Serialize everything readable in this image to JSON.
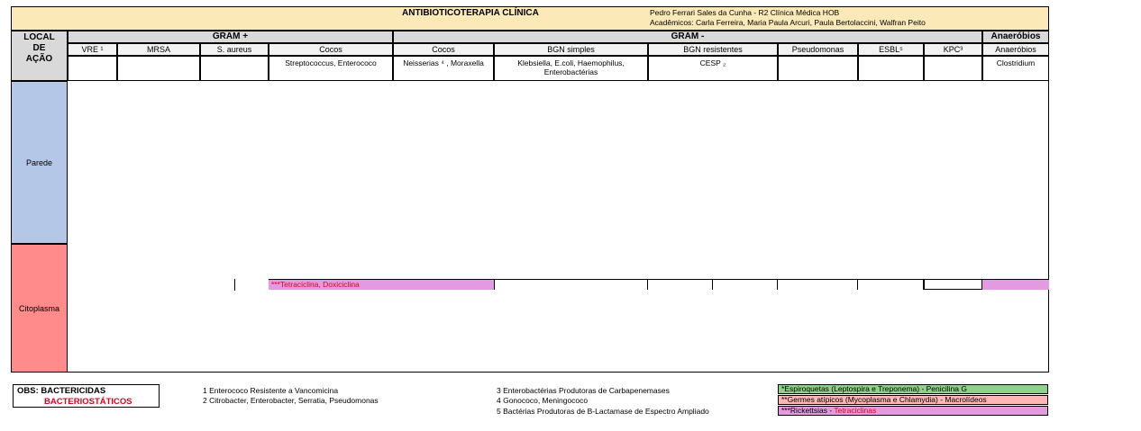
{
  "header": {
    "title": "ANTIBIOTICOTERAPIA CLÍNICA",
    "author": "Pedro Ferrari Sales da Cunha - R2 Clínica Médica HOB",
    "academics": "Acadêmicos: Carla Ferreira, Maria Paula Arcuri, Paula Bertolaccini, Walfran Peito"
  },
  "local": {
    "line1": "LOCAL",
    "line2": "DE",
    "line3": "AÇÃO"
  },
  "groups": {
    "gram_pos": "GRAM +",
    "gram_neg": "GRAM -",
    "anaerobios": "Anaeróbios"
  },
  "columns": [
    {
      "header": "VRE ¹",
      "example": ""
    },
    {
      "header": "MRSA",
      "example": ""
    },
    {
      "header": "S. aureus",
      "example": ""
    },
    {
      "header": "Cocos",
      "example": "Streptococcus, Enterococo"
    },
    {
      "header": "Cocos",
      "example": "Neisserias ⁴ , Moraxella"
    },
    {
      "header": "BGN simples",
      "example": "Klebsiella, E.coli, Haemophilus, Enterobactérias"
    },
    {
      "header": "BGN resistentes",
      "example": "CESP ₂"
    },
    {
      "header": "Pseudomonas",
      "example": ""
    },
    {
      "header": "ESBL⁵",
      "example": ""
    },
    {
      "header": "KPC³",
      "example": ""
    },
    {
      "header": "Anaeróbios",
      "example": "Clostridium"
    }
  ],
  "rows": {
    "parede": "Parede",
    "citoplasma": "Citoplasma"
  },
  "citoplasma": {
    "tetraciclina": "***Tetraciclina, Doxiciclina"
  },
  "footer": {
    "obs_label": "OBS: BACTERICIDAS",
    "bacteriostaticos": "BACTERIOSTÁTICOS",
    "notes_left": [
      "1 Enterococo Resistente a Vancomicina",
      "2 Citrobacter, Enterobacter, Serratia, Pseudomonas"
    ],
    "notes_mid": [
      "3 Enterobactérias Produtoras de Carbapenemases",
      "4 Gonococo, Meningococo",
      "5 Bactérias Produtoras de B-Lactamase de Espectro Ampliado"
    ],
    "legend": [
      {
        "text": "*Espiroquetas (Leptospira e Treponema) - Penicilina G",
        "color": "#8fd18a"
      },
      {
        "text": "**Germes atípicos (Mycoplasma e Chlamydia) - Macrolídeos",
        "color": "#ffb6b6"
      },
      {
        "prefix": "***Rickettsias - ",
        "suffix": "Tetraciclinas",
        "color": "#e39ae0"
      }
    ]
  }
}
